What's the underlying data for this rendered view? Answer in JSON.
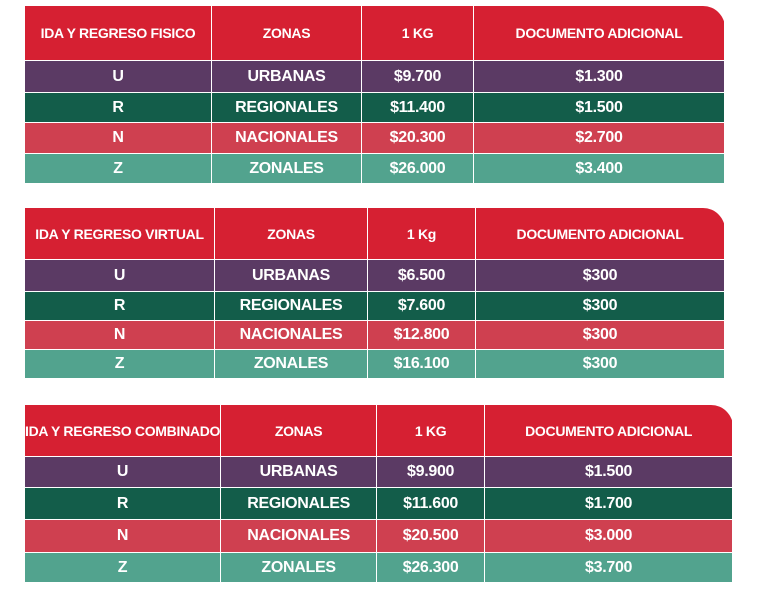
{
  "colors": {
    "header": "#d62032",
    "row_u": "#5b3a64",
    "row_r": "#135d4a",
    "row_n": "#cf4050",
    "row_z": "#52a38e"
  },
  "tables": [
    {
      "headers": [
        "IDA Y REGRESO FISICO",
        "ZONAS",
        "1 KG",
        "DOCUMENTO ADICIONAL"
      ],
      "rows": [
        [
          "U",
          "URBANAS",
          "$9.700",
          "$1.300"
        ],
        [
          "R",
          "REGIONALES",
          "$11.400",
          "$1.500"
        ],
        [
          "N",
          "NACIONALES",
          "$20.300",
          "$2.700"
        ],
        [
          "Z",
          "ZONALES",
          "$26.000",
          "$3.400"
        ]
      ]
    },
    {
      "headers": [
        "IDA Y REGRESO VIRTUAL",
        "ZONAS",
        "1 Kg",
        "DOCUMENTO ADICIONAL"
      ],
      "rows": [
        [
          "U",
          "URBANAS",
          "$6.500",
          "$300"
        ],
        [
          "R",
          "REGIONALES",
          "$7.600",
          "$300"
        ],
        [
          "N",
          "NACIONALES",
          "$12.800",
          "$300"
        ],
        [
          "Z",
          "ZONALES",
          "$16.100",
          "$300"
        ]
      ]
    },
    {
      "headers": [
        "IDA Y REGRESO COMBINADO",
        "ZONAS",
        "1 KG",
        "DOCUMENTO ADICIONAL"
      ],
      "rows": [
        [
          "U",
          "URBANAS",
          "$9.900",
          "$1.500"
        ],
        [
          "R",
          "REGIONALES",
          "$11.600",
          "$1.700"
        ],
        [
          "N",
          "NACIONALES",
          "$20.500",
          "$3.000"
        ],
        [
          "Z",
          "ZONALES",
          "$26.300",
          "$3.700"
        ]
      ]
    }
  ]
}
